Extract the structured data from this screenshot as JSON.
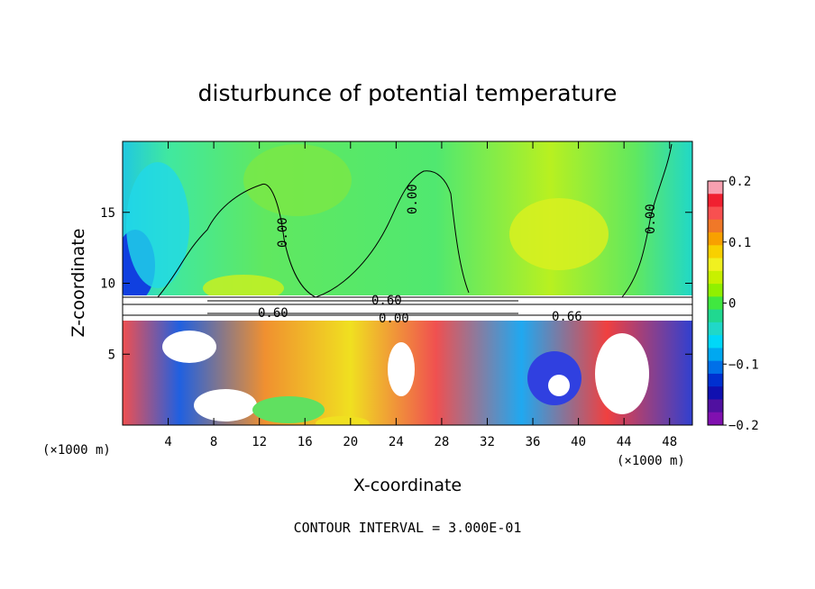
{
  "chart_data": {
    "type": "heatmap",
    "title": "disturbunce of potential temperature",
    "xlabel": "X-coordinate",
    "ylabel": "Z-coordinate",
    "x_unit": "(×1000 m)",
    "y_unit": "(×1000 m)",
    "xlim": [
      0,
      50
    ],
    "ylim": [
      0,
      20
    ],
    "x_ticks": [
      4,
      8,
      12,
      16,
      20,
      24,
      28,
      32,
      36,
      40,
      44,
      48
    ],
    "y_ticks": [
      5,
      10,
      15
    ],
    "colorbar": {
      "range": [
        -0.2,
        0.2
      ],
      "ticks": [
        "0.2",
        "0.1",
        "0",
        "−0.1",
        "−0.2"
      ],
      "tick_values": [
        0.2,
        0.1,
        0,
        -0.1,
        -0.2
      ],
      "colors": [
        "#f8a0b0",
        "#f02030",
        "#f85050",
        "#f07828",
        "#f8a000",
        "#f8d000",
        "#f0f020",
        "#c8f000",
        "#90f000",
        "#40e840",
        "#20d890",
        "#20d8c8",
        "#00d8f8",
        "#00a8f0",
        "#0070e8",
        "#0030d0",
        "#1010b0",
        "#5010a0",
        "#8010b0"
      ]
    },
    "contour_labels": [
      "0.00",
      "0.00",
      "0.00",
      "0.60",
      "0.60",
      "0.00",
      "0.66"
    ],
    "footer": "CONTOUR INTERVAL = 3.000E-01"
  }
}
